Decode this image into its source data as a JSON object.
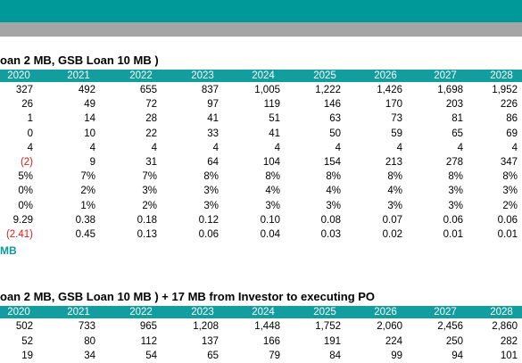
{
  "section1": {
    "title": "oan 2 MB, GSB Loan 10 MB )",
    "years": [
      "2020",
      "2021",
      "2022",
      "2023",
      "2024",
      "2025",
      "2026",
      "2027",
      "2028"
    ],
    "rows": [
      [
        "327",
        "492",
        "655",
        "837",
        "1,005",
        "1,222",
        "1,426",
        "1,698",
        "1,952"
      ],
      [
        "26",
        "49",
        "72",
        "97",
        "119",
        "146",
        "170",
        "203",
        "226"
      ],
      [
        "1",
        "14",
        "28",
        "41",
        "51",
        "63",
        "73",
        "81",
        "86"
      ],
      [
        "0",
        "10",
        "22",
        "33",
        "41",
        "50",
        "59",
        "65",
        "69"
      ],
      [
        "4",
        "4",
        "4",
        "4",
        "4",
        "4",
        "4",
        "4",
        "4"
      ],
      [
        "(2)",
        "9",
        "31",
        "64",
        "104",
        "154",
        "213",
        "278",
        "347"
      ],
      [
        "5%",
        "7%",
        "7%",
        "8%",
        "8%",
        "8%",
        "8%",
        "8%",
        "8%"
      ],
      [
        "0%",
        "2%",
        "3%",
        "3%",
        "4%",
        "4%",
        "4%",
        "3%",
        "3%"
      ],
      [
        "0%",
        "1%",
        "2%",
        "3%",
        "3%",
        "3%",
        "3%",
        "3%",
        "2%"
      ],
      [
        "9.29",
        "0.38",
        "0.18",
        "0.12",
        "0.10",
        "0.08",
        "0.07",
        "0.06",
        "0.06"
      ],
      [
        "(2.41)",
        "0.45",
        "0.13",
        "0.06",
        "0.04",
        "0.03",
        "0.02",
        "0.01",
        "0.01"
      ]
    ],
    "negative_color": "#d9201c",
    "footer": "MB"
  },
  "section2": {
    "title": "oan 2 MB, GSB Loan 10 MB ) + 17 MB from Investor to executing PO",
    "years": [
      "2020",
      "2021",
      "2022",
      "2023",
      "2024",
      "2025",
      "2026",
      "2027",
      "2028"
    ],
    "rows": [
      [
        "502",
        "733",
        "965",
        "1,208",
        "1,448",
        "1,752",
        "2,060",
        "2,456",
        "2,860"
      ],
      [
        "52",
        "80",
        "112",
        "137",
        "166",
        "191",
        "224",
        "250",
        "282"
      ],
      [
        "19",
        "34",
        "54",
        "65",
        "79",
        "84",
        "99",
        "94",
        "101"
      ]
    ]
  },
  "colors": {
    "top_bar": "#009999",
    "gray_bar": "#a5a5a5",
    "header_bg": "#129e9e",
    "accent_text": "#0a9a9a"
  }
}
